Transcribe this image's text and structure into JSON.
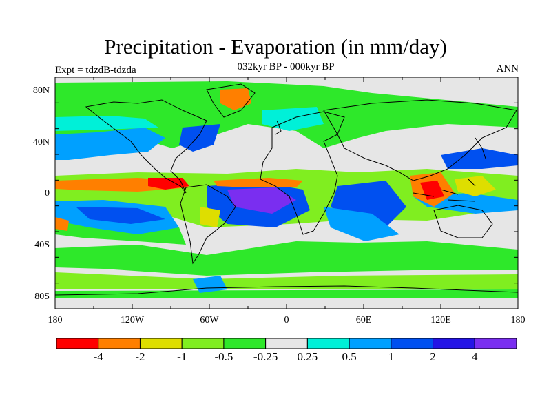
{
  "title": "Precipitation - Evaporation (in mm/day)",
  "subtitle": "032kyr BP - 000kyr BP",
  "left_label": "Expt = tdzdB-tdzda",
  "right_label": "ANN",
  "lat_ticks": [
    "80N",
    "40N",
    "0",
    "40S",
    "80S"
  ],
  "lon_ticks": [
    "180",
    "120W",
    "60W",
    "0",
    "60E",
    "120E",
    "180"
  ],
  "colorbar": {
    "labels": [
      "-4",
      "-2",
      "-1",
      "-0.5",
      "-0.25",
      "0.25",
      "0.5",
      "1",
      "2",
      "4"
    ],
    "colors": [
      "#ff0000",
      "#ff7f00",
      "#dede00",
      "#80ee20",
      "#2ee82a",
      "#e6e6e6",
      "#00f0d8",
      "#00a0ff",
      "#0050f0",
      "#2414e6",
      "#7a2ef0"
    ]
  },
  "colors": {
    "land": "#e6e6e6",
    "coast": "#000000"
  }
}
